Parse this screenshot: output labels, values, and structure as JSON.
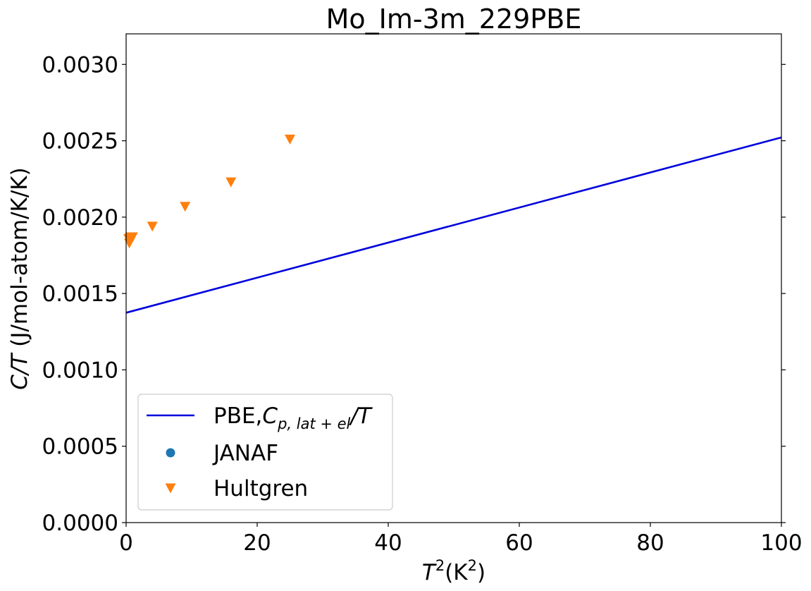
{
  "chart_data": {
    "type": "line",
    "title": "Mo_Im-3m_229PBE",
    "xlabel": {
      "base": "T",
      "sup": "2",
      "rest_open": "(K",
      "rest_sup": "2",
      "rest_close": ")"
    },
    "ylabel": {
      "italic": "C/T",
      "rest": " (J/mol-atom/K/K)"
    },
    "xlim": [
      0,
      100
    ],
    "ylim": [
      0,
      0.0032
    ],
    "xticks": [
      {
        "value": 0,
        "label": "0"
      },
      {
        "value": 20,
        "label": "20"
      },
      {
        "value": 40,
        "label": "40"
      },
      {
        "value": 60,
        "label": "60"
      },
      {
        "value": 80,
        "label": "80"
      },
      {
        "value": 100,
        "label": "100"
      }
    ],
    "yticks": [
      {
        "value": 0,
        "label": "0.0000"
      },
      {
        "value": 0.0005,
        "label": "0.0005"
      },
      {
        "value": 0.001,
        "label": "0.0010"
      },
      {
        "value": 0.0015,
        "label": "0.0015"
      },
      {
        "value": 0.002,
        "label": "0.0020"
      },
      {
        "value": 0.0025,
        "label": "0.0025"
      },
      {
        "value": 0.003,
        "label": "0.0030"
      }
    ],
    "grid": false,
    "legend_position": "lower-left",
    "series": [
      {
        "name": "PBE,Cp,lat+el/T",
        "legend": {
          "prefix": "PBE,",
          "main": "C",
          "sub": "p, lat + el",
          "suffix": "/T"
        },
        "kind": "line",
        "color": "#0000dd",
        "x": [
          0,
          100
        ],
        "y": [
          0.001374,
          0.002522
        ]
      },
      {
        "name": "JANAF",
        "legend": {
          "prefix": "JANAF",
          "main": "",
          "sub": "",
          "suffix": ""
        },
        "kind": "circle",
        "color": "#1f77b4",
        "x": [],
        "y": []
      },
      {
        "name": "Hultgren",
        "legend": {
          "prefix": "Hultgren",
          "main": "",
          "sub": "",
          "suffix": ""
        },
        "kind": "triangle-down",
        "color": "#ff7f0e",
        "x": [
          0.36,
          0.49,
          0.64,
          0.81,
          1.0,
          4.0,
          9.0,
          16.0,
          25.0
        ],
        "y": [
          0.00186,
          0.00183,
          0.00187,
          0.00186,
          0.00187,
          0.00194,
          0.00207,
          0.00223,
          0.00251
        ]
      }
    ]
  }
}
